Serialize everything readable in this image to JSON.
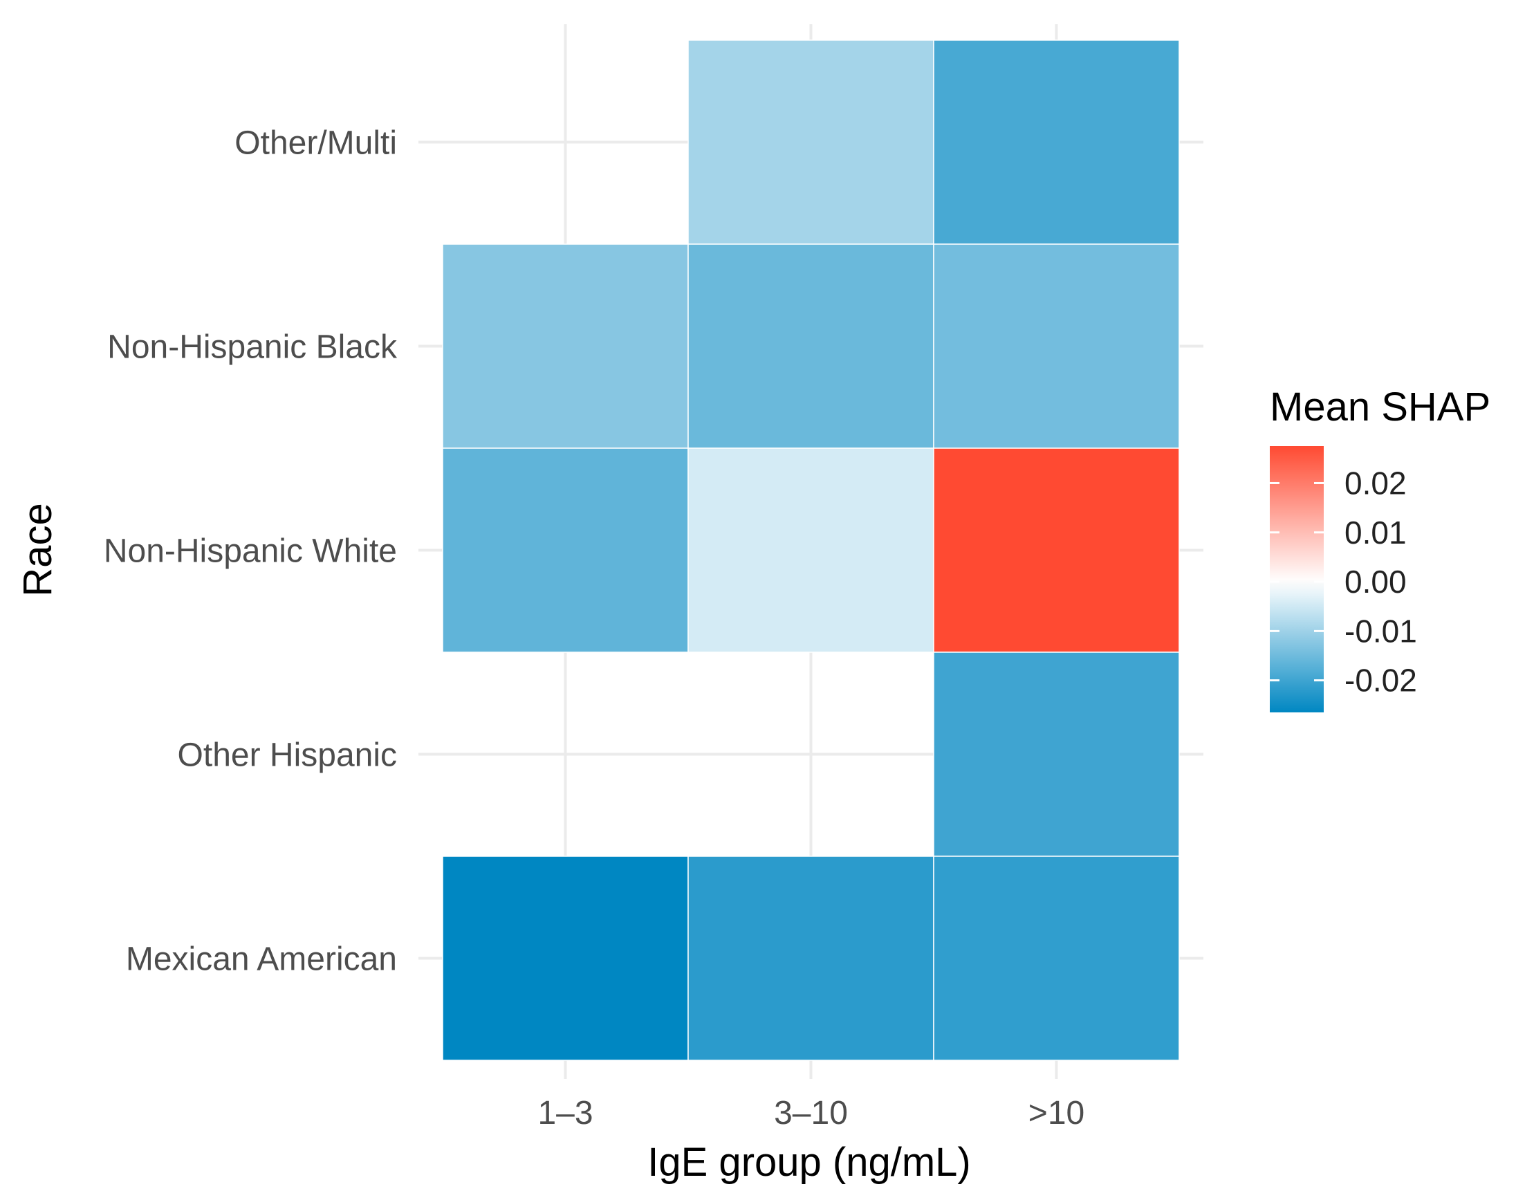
{
  "chart_data": {
    "type": "heatmap",
    "title": "",
    "xlabel": "IgE group (ng/mL)",
    "ylabel": "Race",
    "x_categories": [
      "1–3",
      "3–10",
      ">10"
    ],
    "y_categories": [
      "Mexican American",
      "Other Hispanic",
      "Non-Hispanic White",
      "Non-Hispanic Black",
      "Other/Multi"
    ],
    "cells": [
      {
        "x": "3–10",
        "y": "Other/Multi",
        "value": -0.0095
      },
      {
        "x": ">10",
        "y": "Other/Multi",
        "value": -0.019
      },
      {
        "x": "1–3",
        "y": "Non-Hispanic Black",
        "value": -0.0125
      },
      {
        "x": "3–10",
        "y": "Non-Hispanic Black",
        "value": -0.0155
      },
      {
        "x": ">10",
        "y": "Non-Hispanic Black",
        "value": -0.0145
      },
      {
        "x": "1–3",
        "y": "Non-Hispanic White",
        "value": -0.0165
      },
      {
        "x": "3–10",
        "y": "Non-Hispanic White",
        "value": -0.0045
      },
      {
        "x": ">10",
        "y": "Non-Hispanic White",
        "value": 0.0275
      },
      {
        "x": ">10",
        "y": "Other Hispanic",
        "value": -0.02
      },
      {
        "x": "1–3",
        "y": "Mexican American",
        "value": -0.0265
      },
      {
        "x": "3–10",
        "y": "Mexican American",
        "value": -0.022
      },
      {
        "x": ">10",
        "y": "Mexican American",
        "value": -0.0215
      }
    ],
    "color_scale": {
      "low": -0.0265,
      "mid": 0,
      "high": 0.0275,
      "low_color": "#0087c2",
      "mid_color": "#ffffff",
      "high_color": "#ff4a32"
    },
    "legend": {
      "title": "Mean SHAP",
      "ticks": [
        0.02,
        0.01,
        0.0,
        -0.01,
        -0.02
      ],
      "tick_labels": [
        "0.02",
        "0.01",
        "0.00",
        "-0.01",
        "-0.02"
      ],
      "placement": "right"
    },
    "grid": true
  }
}
